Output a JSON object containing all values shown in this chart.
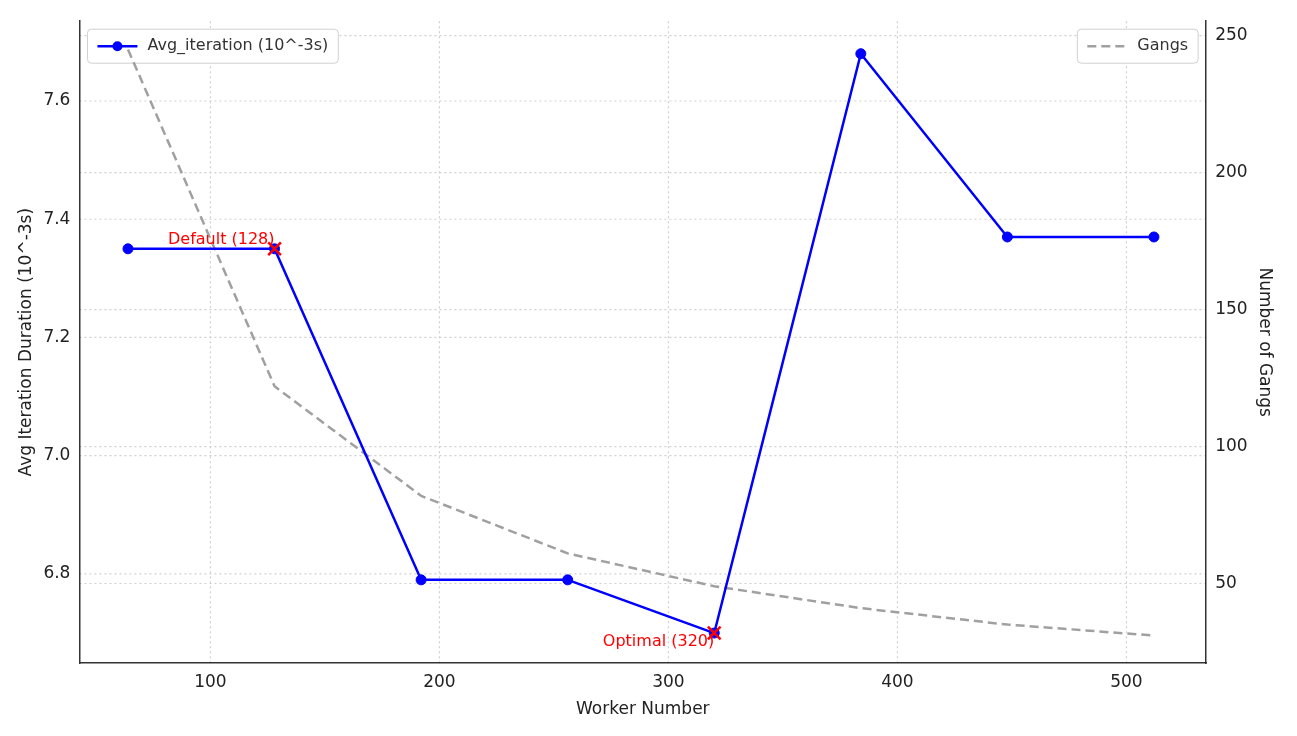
{
  "chart_data": {
    "type": "line",
    "xlabel": "Worker Number",
    "ylabel": "Avg Iteration Duration (10^-3s)",
    "y2label": "Number of Gangs",
    "x": [
      64,
      128,
      192,
      256,
      320,
      384,
      448,
      512
    ],
    "series": [
      {
        "name": "Avg_iteration (10^-3s)",
        "color": "#0000ff",
        "marker": "circle",
        "line_style": "solid",
        "values": [
          7.35,
          7.35,
          6.79,
          6.79,
          6.7,
          7.68,
          7.37,
          7.37
        ]
      },
      {
        "type": "scatter",
        "color": "#ff0000",
        "marker": "cross",
        "x": [
          128,
          320
        ],
        "values": [
          7.35,
          6.7
        ]
      },
      {
        "name": "Gangs",
        "color": "#a0a0a0",
        "marker": "none",
        "line_style": "dashed",
        "axis": "y2",
        "values": [
          245,
          122,
          82,
          61,
          49,
          41,
          35,
          31
        ]
      }
    ],
    "annotations": [
      {
        "text": "Default (128)",
        "x": 128,
        "y": 7.35
      },
      {
        "text": "Optimal (320)",
        "x": 320,
        "y": 6.7
      }
    ],
    "xlim": [
      42.8,
      534.8
    ],
    "xticks": [
      100,
      200,
      300,
      400,
      500
    ],
    "ylim": [
      6.649,
      7.735
    ],
    "yticks": [
      6.8,
      {
        "value": 7.0,
        "label": "7.0"
      },
      7.2,
      7.4,
      7.6
    ],
    "y2lim": [
      20.9,
      255.3
    ],
    "y2ticks": [
      50,
      100,
      150,
      200,
      250
    ],
    "grid": true,
    "legend": "top"
  }
}
